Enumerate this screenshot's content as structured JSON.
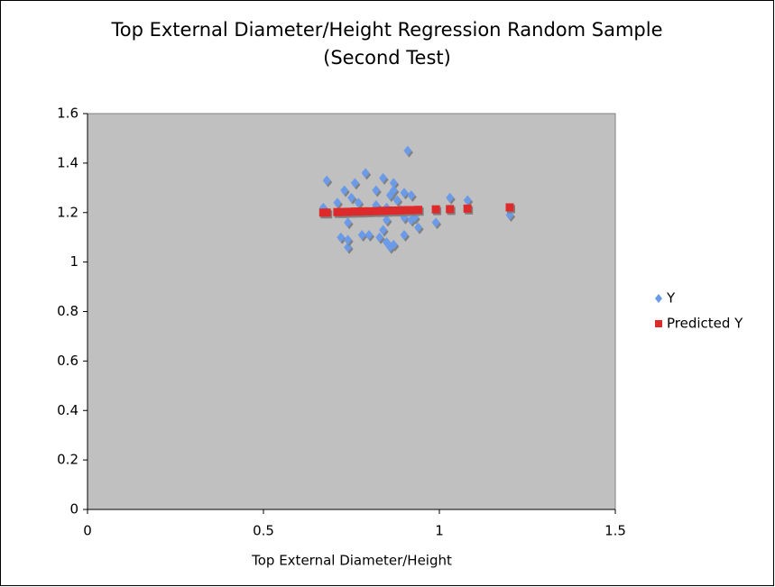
{
  "chart_data": {
    "type": "scatter",
    "title": "Top External Diameter/Height Regression Random Sample (Second Test)",
    "x_label": "Top External Diameter/Height",
    "xlim": [
      0,
      1.5
    ],
    "xticks": [
      0,
      0.5,
      1,
      1.5
    ],
    "ylim": [
      0,
      1.6
    ],
    "yticks": [
      0,
      0.2,
      0.4,
      0.6,
      0.8,
      1,
      1.2,
      1.4,
      1.6
    ],
    "grid": false,
    "legend": "right",
    "series": [
      {
        "name": "Y",
        "color": "#6b9be8",
        "marker": "diamond",
        "x": [
          0.67,
          0.68,
          0.71,
          0.72,
          0.73,
          0.74,
          0.74,
          0.74,
          0.75,
          0.76,
          0.77,
          0.78,
          0.79,
          0.8,
          0.82,
          0.82,
          0.83,
          0.84,
          0.84,
          0.85,
          0.85,
          0.85,
          0.86,
          0.86,
          0.87,
          0.87,
          0.87,
          0.88,
          0.89,
          0.9,
          0.9,
          0.9,
          0.91,
          0.92,
          0.92,
          0.93,
          0.94,
          0.99,
          1.03,
          1.08,
          1.2
        ],
        "values": [
          1.22,
          1.33,
          1.24,
          1.1,
          1.29,
          1.16,
          1.06,
          1.09,
          1.26,
          1.32,
          1.24,
          1.11,
          1.36,
          1.11,
          1.29,
          1.23,
          1.1,
          1.13,
          1.34,
          1.17,
          1.22,
          1.08,
          1.06,
          1.27,
          1.32,
          1.07,
          1.29,
          1.25,
          1.21,
          1.28,
          1.11,
          1.18,
          1.45,
          1.27,
          1.17,
          1.18,
          1.14,
          1.16,
          1.26,
          1.25,
          1.19
        ]
      },
      {
        "name": "Predicted Y",
        "color": "#dd2a2a",
        "marker": "square",
        "x": [
          0.67,
          0.68,
          0.71,
          0.72,
          0.73,
          0.74,
          0.75,
          0.76,
          0.77,
          0.78,
          0.79,
          0.8,
          0.82,
          0.83,
          0.84,
          0.85,
          0.86,
          0.87,
          0.88,
          0.89,
          0.9,
          0.91,
          0.92,
          0.93,
          0.94,
          0.99,
          1.03,
          1.08,
          1.2
        ],
        "values": [
          1.2,
          1.2,
          1.202,
          1.202,
          1.202,
          1.203,
          1.203,
          1.204,
          1.204,
          1.204,
          1.205,
          1.205,
          1.206,
          1.206,
          1.207,
          1.207,
          1.208,
          1.208,
          1.208,
          1.209,
          1.209,
          1.21,
          1.21,
          1.21,
          1.211,
          1.213,
          1.214,
          1.216,
          1.221
        ]
      }
    ]
  }
}
